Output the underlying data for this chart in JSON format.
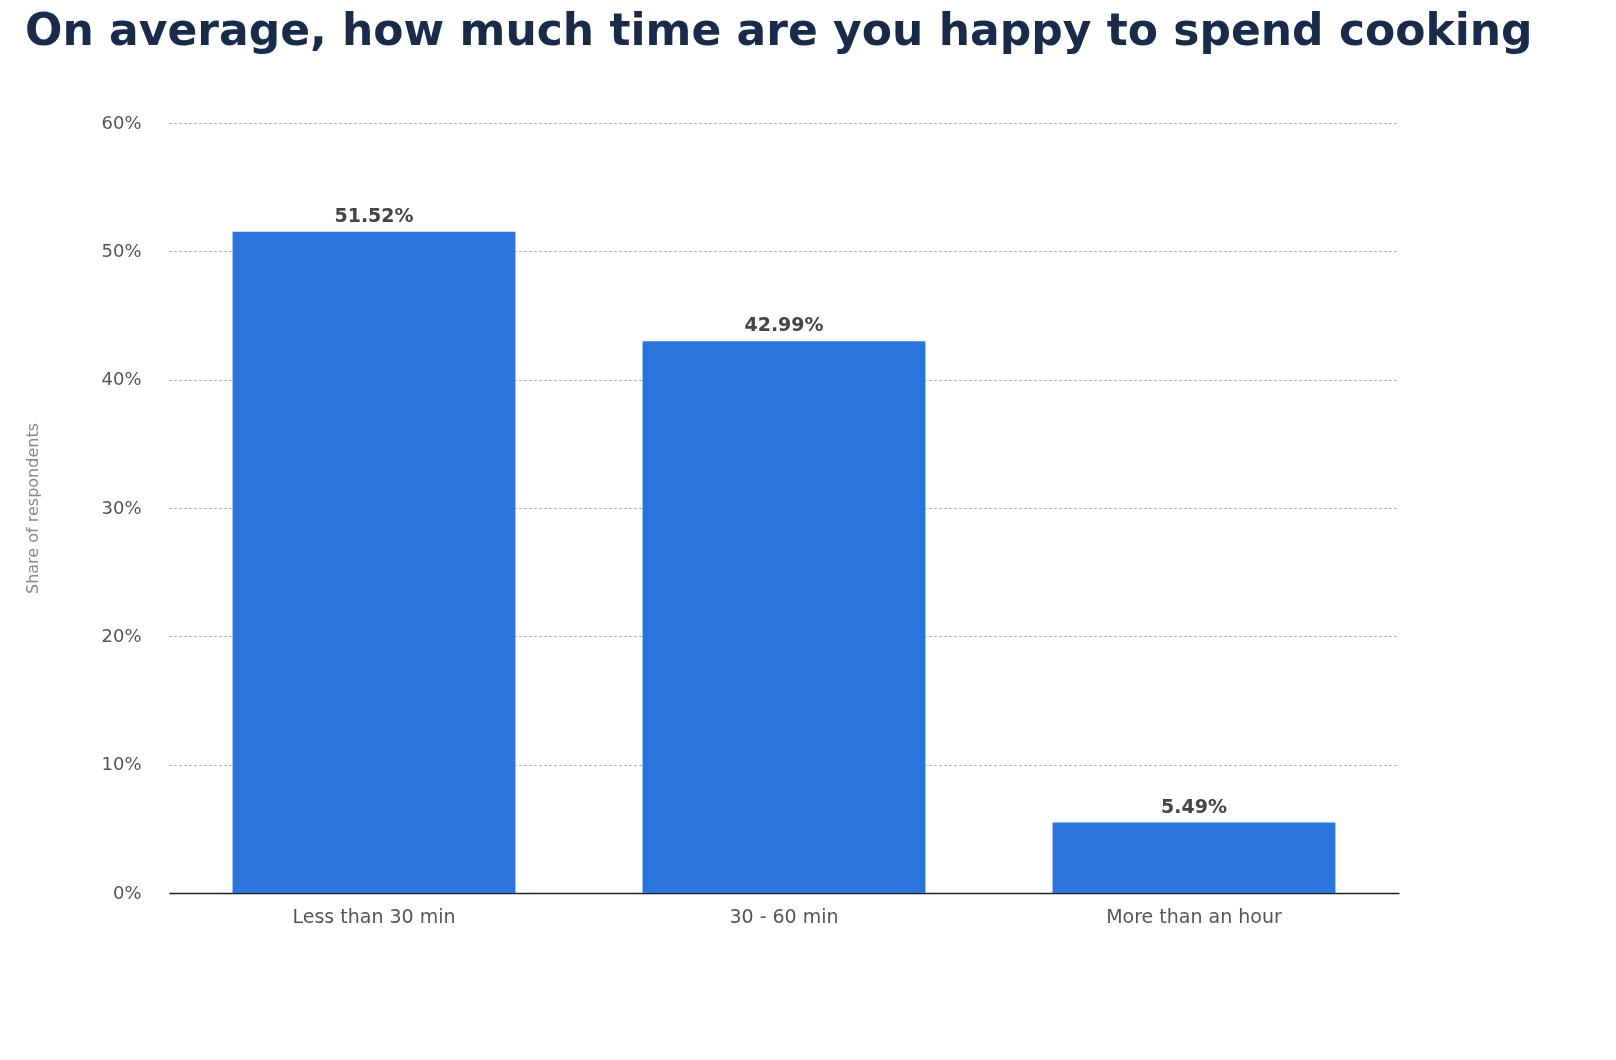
{
  "chart_data": {
    "type": "bar",
    "title": "On average, how much time are you happy to spend cooking",
    "ylabel": "Share of respondents",
    "categories": [
      "Less than 30 min",
      "30 - 60 min",
      "More than an hour"
    ],
    "values": [
      51.52,
      42.99,
      5.49
    ],
    "value_labels": [
      "51.52%",
      "42.99%",
      "5.49%"
    ],
    "color": "#2a74dc",
    "ylim": [
      0,
      60
    ],
    "yticks": [
      {
        "value": 0,
        "label": "0%"
      },
      {
        "value": 10,
        "label": "10%"
      },
      {
        "value": 20,
        "label": "20%"
      },
      {
        "value": 30,
        "label": "30%"
      },
      {
        "value": 40,
        "label": "40%"
      },
      {
        "value": 50,
        "label": "50%"
      },
      {
        "value": 60,
        "label": "60%"
      }
    ],
    "grid": "y"
  }
}
